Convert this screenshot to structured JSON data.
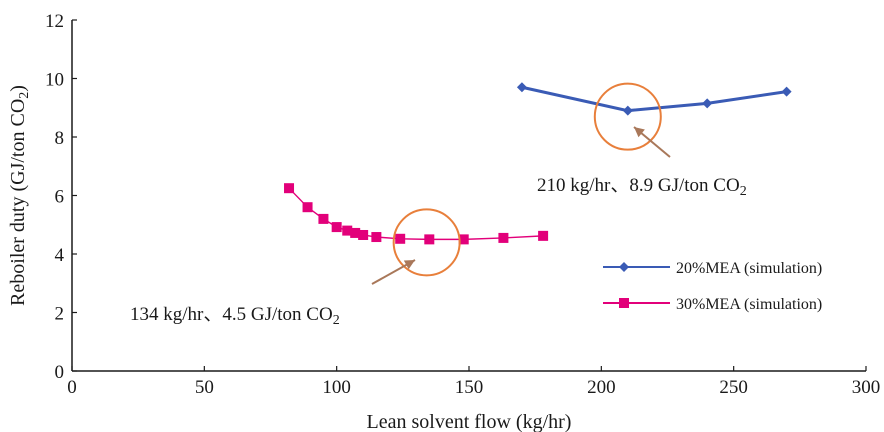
{
  "chart_data": {
    "type": "line",
    "title": "",
    "xlabel": "Lean solvent flow (kg/hr)",
    "ylabel": "Reboiler duty (GJ/ton CO",
    "ylabel_sub": "2",
    "ylabel_end": ")",
    "xlim": [
      0,
      300
    ],
    "ylim": [
      0,
      12
    ],
    "x_ticks": [
      0,
      50,
      100,
      150,
      200,
      250,
      300
    ],
    "y_ticks": [
      0,
      2,
      4,
      6,
      8,
      10,
      12
    ],
    "grid": false,
    "legend_position": "right",
    "series": [
      {
        "name": "20%MEA (simulation)",
        "color": "#3a5bb5",
        "marker": "diamond",
        "points": [
          {
            "x": 170,
            "y": 9.7
          },
          {
            "x": 210,
            "y": 8.9
          },
          {
            "x": 240,
            "y": 9.15
          },
          {
            "x": 270,
            "y": 9.55
          }
        ]
      },
      {
        "name": "30%MEA (simulation)",
        "color": "#e2007a",
        "marker": "square",
        "points": [
          {
            "x": 82,
            "y": 6.25
          },
          {
            "x": 89,
            "y": 5.6
          },
          {
            "x": 95,
            "y": 5.2
          },
          {
            "x": 100,
            "y": 4.92
          },
          {
            "x": 104,
            "y": 4.8
          },
          {
            "x": 107,
            "y": 4.72
          },
          {
            "x": 110,
            "y": 4.65
          },
          {
            "x": 115,
            "y": 4.58
          },
          {
            "x": 124,
            "y": 4.52
          },
          {
            "x": 135,
            "y": 4.5
          },
          {
            "x": 148,
            "y": 4.5
          },
          {
            "x": 163,
            "y": 4.55
          },
          {
            "x": 178,
            "y": 4.62
          }
        ]
      }
    ],
    "annotations": [
      {
        "text": "210 kg/hr、8.9 GJ/ton CO",
        "sub": "2",
        "target": {
          "x": 210,
          "y": 8.9
        },
        "circle_color": "#e87f3b",
        "arrow_color": "#a9785a"
      },
      {
        "text": "134 kg/hr、4.5 GJ/ton CO",
        "sub": "2",
        "target": {
          "x": 134,
          "y": 4.5
        },
        "circle_color": "#e87f3b",
        "arrow_color": "#a9785a"
      }
    ]
  }
}
